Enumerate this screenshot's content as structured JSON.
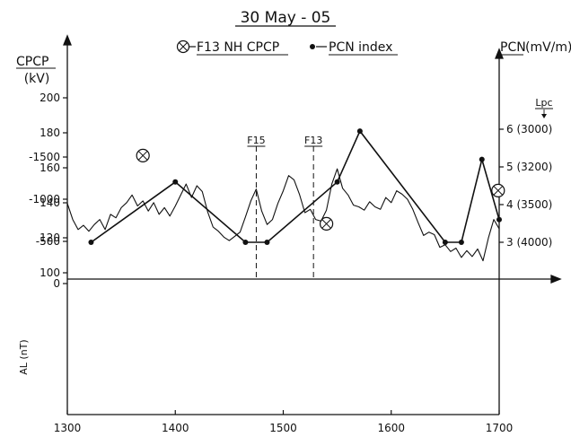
{
  "chart_data": [
    {
      "type": "line",
      "title": "30 May - 05",
      "x": {
        "lim": [
          1300,
          1700
        ]
      },
      "y_left": {
        "label": "CPCP",
        "unit": "(kV)",
        "lim": [
          100,
          220
        ],
        "ticks": [
          100,
          120,
          140,
          160,
          180,
          200
        ]
      },
      "y_right": {
        "label": "PCN",
        "unit": "(mV/m)",
        "lim": [
          1.0,
          7.0
        ],
        "ticks": [
          3,
          4,
          5,
          6
        ],
        "tick_labels": [
          "3 (4000)",
          "4 (3500)",
          "5 (3200)",
          "6 (3000)"
        ],
        "secondary_label": "Lpc"
      },
      "legend": {
        "position": "top-center",
        "items": [
          {
            "marker": "circle-cross",
            "label": "F13 NH CPCP"
          },
          {
            "marker": "dot-line",
            "label": "PCN index"
          }
        ]
      },
      "series": [
        {
          "name": "PCN index",
          "axis": "right",
          "color": "#111111",
          "points": [
            [
              1322,
              3.0
            ],
            [
              1400,
              4.6
            ],
            [
              1465,
              3.0
            ],
            [
              1485,
              3.0
            ],
            [
              1550,
              4.6
            ],
            [
              1571,
              5.95
            ],
            [
              1650,
              3.0
            ],
            [
              1665,
              3.0
            ],
            [
              1684,
              5.2
            ],
            [
              1700,
              3.6
            ]
          ]
        },
        {
          "name": "F13 NH CPCP",
          "axis": "left",
          "marker": "circle-cross",
          "points": [
            [
              1370,
              167
            ],
            [
              1540,
              128
            ],
            [
              1699,
              147
            ]
          ]
        }
      ],
      "vlines": [
        {
          "x": 1475,
          "label": "F15"
        },
        {
          "x": 1528,
          "label": "F13"
        }
      ]
    },
    {
      "type": "line",
      "x": {
        "lim": [
          1300,
          1700
        ],
        "ticks": [
          1300,
          1400,
          1500,
          1600,
          1700
        ]
      },
      "y": {
        "label": "AL (nT)",
        "lim": [
          -1500,
          0
        ],
        "ticks": [
          -1500,
          -1000,
          -500,
          0
        ]
      },
      "series": [
        {
          "name": "AL",
          "color": "#111111",
          "points": [
            [
              1300,
              -950
            ],
            [
              1305,
              -760
            ],
            [
              1310,
              -640
            ],
            [
              1315,
              -690
            ],
            [
              1320,
              -620
            ],
            [
              1325,
              -700
            ],
            [
              1330,
              -760
            ],
            [
              1335,
              -640
            ],
            [
              1340,
              -820
            ],
            [
              1345,
              -780
            ],
            [
              1350,
              -900
            ],
            [
              1355,
              -960
            ],
            [
              1360,
              -1050
            ],
            [
              1365,
              -920
            ],
            [
              1370,
              -980
            ],
            [
              1375,
              -860
            ],
            [
              1380,
              -960
            ],
            [
              1385,
              -820
            ],
            [
              1390,
              -900
            ],
            [
              1395,
              -800
            ],
            [
              1400,
              -920
            ],
            [
              1405,
              -1050
            ],
            [
              1410,
              -1180
            ],
            [
              1415,
              -1020
            ],
            [
              1420,
              -1160
            ],
            [
              1425,
              -1090
            ],
            [
              1430,
              -850
            ],
            [
              1435,
              -670
            ],
            [
              1440,
              -620
            ],
            [
              1445,
              -550
            ],
            [
              1450,
              -510
            ],
            [
              1455,
              -560
            ],
            [
              1460,
              -610
            ],
            [
              1465,
              -790
            ],
            [
              1470,
              -980
            ],
            [
              1475,
              -1120
            ],
            [
              1480,
              -860
            ],
            [
              1485,
              -700
            ],
            [
              1490,
              -760
            ],
            [
              1495,
              -950
            ],
            [
              1500,
              -1100
            ],
            [
              1505,
              -1280
            ],
            [
              1510,
              -1230
            ],
            [
              1515,
              -1060
            ],
            [
              1520,
              -840
            ],
            [
              1525,
              -880
            ],
            [
              1530,
              -760
            ],
            [
              1535,
              -740
            ],
            [
              1540,
              -870
            ],
            [
              1545,
              -1180
            ],
            [
              1550,
              -1360
            ],
            [
              1555,
              -1130
            ],
            [
              1560,
              -1050
            ],
            [
              1565,
              -930
            ],
            [
              1570,
              -910
            ],
            [
              1575,
              -870
            ],
            [
              1580,
              -970
            ],
            [
              1585,
              -910
            ],
            [
              1590,
              -880
            ],
            [
              1595,
              -1020
            ],
            [
              1600,
              -960
            ],
            [
              1605,
              -1100
            ],
            [
              1610,
              -1060
            ],
            [
              1615,
              -1000
            ],
            [
              1620,
              -880
            ],
            [
              1625,
              -720
            ],
            [
              1630,
              -570
            ],
            [
              1635,
              -610
            ],
            [
              1640,
              -580
            ],
            [
              1645,
              -430
            ],
            [
              1650,
              -460
            ],
            [
              1655,
              -380
            ],
            [
              1660,
              -420
            ],
            [
              1665,
              -310
            ],
            [
              1670,
              -390
            ],
            [
              1675,
              -320
            ],
            [
              1680,
              -410
            ],
            [
              1685,
              -270
            ],
            [
              1690,
              -540
            ],
            [
              1695,
              -760
            ],
            [
              1700,
              -650
            ]
          ]
        }
      ]
    }
  ]
}
